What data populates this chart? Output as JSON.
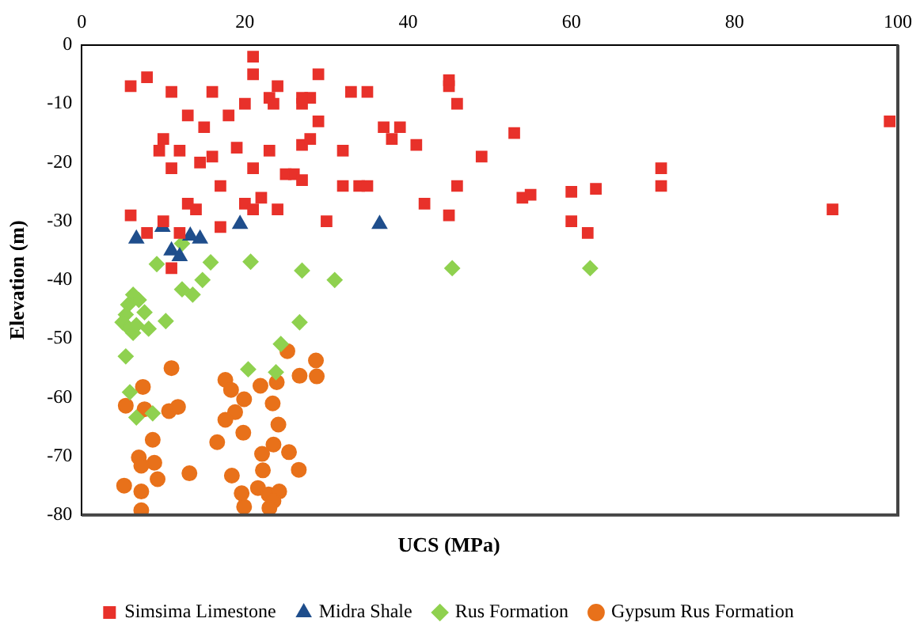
{
  "chart_data": {
    "type": "scatter",
    "xlabel": "UCS (MPa)",
    "ylabel": "Elevation (m)",
    "xlim": [
      0,
      100
    ],
    "xticks": [
      0,
      20,
      40,
      60,
      80,
      100
    ],
    "ylim": [
      -80,
      0
    ],
    "yticks": [
      -80,
      -70,
      -60,
      -50,
      -40,
      -30,
      -20,
      -10,
      0
    ],
    "grid": false,
    "legend": "bottom",
    "series": [
      {
        "name": "Simsima Limestone",
        "color": "#e8312a",
        "marker": "square",
        "x": [
          21,
          6,
          8,
          21,
          24,
          23,
          23.5,
          20,
          29,
          28,
          27,
          16,
          13,
          11,
          18,
          15,
          10,
          9.5,
          12,
          11,
          14.5,
          16,
          19,
          21,
          23,
          25,
          26,
          27,
          22,
          20,
          21,
          24,
          13,
          14,
          10,
          6,
          8,
          12,
          17,
          11,
          27,
          28,
          29,
          32,
          30,
          32,
          34,
          35,
          33,
          35,
          37,
          38,
          39,
          41,
          42,
          45,
          45,
          46,
          45,
          46,
          49,
          53,
          54,
          55,
          60,
          60,
          62,
          63,
          71,
          71,
          92,
          99,
          17,
          27
        ],
        "values": [
          -2,
          -7,
          -5.5,
          -5,
          -7,
          -9,
          -10,
          -10,
          -5,
          -9,
          -10,
          -8,
          -12,
          -8,
          -12,
          -14,
          -16,
          -18,
          -18,
          -21,
          -20,
          -19,
          -17.5,
          -21,
          -18,
          -22,
          -22,
          -23,
          -26,
          -27,
          -28,
          -28,
          -27,
          -28,
          -30,
          -29,
          -32,
          -32,
          -31,
          -38,
          -17,
          -16,
          -13,
          -18,
          -30,
          -24,
          -24,
          -24,
          -8,
          -8,
          -14,
          -16,
          -14,
          -17,
          -27,
          -7,
          -6,
          -10,
          -29,
          -24,
          -19,
          -15,
          -26,
          -25.5,
          -25,
          -30,
          -32,
          -24.5,
          -21,
          -24,
          -28,
          -13,
          -24,
          -9
        ]
      },
      {
        "name": "Midra Shale",
        "color": "#1f4e8c",
        "marker": "triangle",
        "x": [
          6.7,
          9.9,
          11,
          12,
          13.3,
          14.5,
          19.4,
          36.5
        ],
        "values": [
          -33,
          -31,
          -35,
          -36,
          -32.5,
          -33,
          -30.5,
          -30.5
        ]
      },
      {
        "name": "Rus Formation",
        "color": "#8fd14f",
        "marker": "diamond",
        "x": [
          9.2,
          15.8,
          20.7,
          27,
          31,
          12.3,
          12.3,
          13.6,
          14.8,
          10.3,
          8.2,
          26.7,
          24.4,
          20.4,
          23.8,
          5.4,
          5.9,
          8.7,
          6.7,
          6.3,
          7,
          5.7,
          7.7,
          5.4,
          5,
          5.7,
          6.3,
          6.7,
          45.4,
          62.3
        ],
        "values": [
          -37.3,
          -37,
          -36.9,
          -38.4,
          -40,
          -33.8,
          -41.6,
          -42.5,
          -40,
          -47,
          -48.3,
          -47.2,
          -50.9,
          -55.2,
          -55.7,
          -53,
          -59.1,
          -62.7,
          -63.4,
          -42.5,
          -43.4,
          -44.2,
          -45.5,
          -45.9,
          -47.2,
          -48.1,
          -49,
          -47.7,
          -38,
          -38
        ]
      },
      {
        "name": "Gypsum Rus Formation",
        "color": "#e8711a",
        "marker": "circle",
        "x": [
          25.2,
          28.7,
          26.7,
          28.8,
          11,
          7.5,
          5.4,
          7.7,
          10.7,
          11.8,
          17.6,
          18.3,
          19.9,
          21.9,
          23.9,
          23.4,
          24.1,
          18.8,
          17.6,
          19.8,
          16.6,
          23.5,
          22.1,
          25.4,
          26.6,
          22.2,
          18.4,
          13.2,
          8.7,
          7,
          8.9,
          7.3,
          9.3,
          5.2,
          7.3,
          7.3,
          19.6,
          19.9,
          21.6,
          22.9,
          24.2,
          23.5,
          23
        ],
        "values": [
          -52.1,
          -53.7,
          -56.3,
          -56.4,
          -55,
          -58.2,
          -61.4,
          -62,
          -62.3,
          -61.6,
          -57,
          -58.7,
          -60.3,
          -58,
          -57.4,
          -61,
          -64.6,
          -62.5,
          -63.8,
          -66,
          -67.6,
          -68,
          -69.6,
          -69.3,
          -72.3,
          -72.4,
          -73.3,
          -72.9,
          -67.2,
          -70.2,
          -71.1,
          -71.6,
          -73.9,
          -75,
          -76,
          -79.2,
          -76.3,
          -78.6,
          -75.4,
          -76.5,
          -76,
          -77.6,
          -78.8
        ]
      }
    ]
  }
}
